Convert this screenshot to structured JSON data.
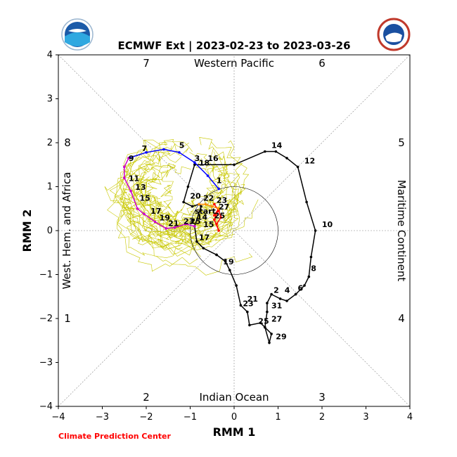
{
  "chart_data": {
    "type": "line",
    "title": "ECMWF Ext | 2023-02-23 to 2023-03-26",
    "xlabel": "RMM 1",
    "ylabel": "RMM 2",
    "xlim": [
      -4,
      4
    ],
    "ylim": [
      -4,
      4
    ],
    "xticks": [
      "−4",
      "−3",
      "−2",
      "−1",
      "0",
      "1",
      "2",
      "3",
      "4"
    ],
    "yticks": [
      "−4",
      "−3",
      "−2",
      "−1",
      "0",
      "1",
      "2",
      "3",
      "4"
    ],
    "regions": {
      "top": "Western Pacific",
      "bottom": "Indian Ocean",
      "left": "West. Hem. and Africa",
      "right": "Maritime Continent"
    },
    "phases": [
      "1",
      "2",
      "3",
      "4",
      "5",
      "6",
      "7",
      "8"
    ],
    "credit": "Climate Prediction Center",
    "unit_circle_radius": 1,
    "colors": {
      "observed": "#000000",
      "forecast_week1": "#ff0000",
      "forecast_week2": "#ff8c00",
      "forecast_week3": "#0000ff",
      "forecast_week4": "#cc00cc",
      "ensemble": "#c8c800"
    },
    "start_label": "start",
    "series": [
      {
        "values": [
          [
            -0.4,
            -0.55
          ],
          [
            -0.2,
            -0.7
          ],
          [
            -0.1,
            -0.9
          ],
          [
            0.05,
            -1.25
          ],
          [
            0.15,
            -1.7
          ],
          [
            0.3,
            -1.85
          ],
          [
            0.35,
            -2.15
          ],
          [
            0.6,
            -2.1
          ],
          [
            0.7,
            -2.2
          ],
          [
            0.85,
            -2.35
          ],
          [
            0.8,
            -2.55
          ],
          [
            0.7,
            -2.2
          ],
          [
            0.75,
            -1.85
          ],
          [
            0.75,
            -1.65
          ],
          [
            0.85,
            -1.45
          ],
          [
            1.05,
            -1.55
          ],
          [
            1.2,
            -1.6
          ],
          [
            1.4,
            -1.45
          ],
          [
            1.6,
            -1.25
          ],
          [
            1.7,
            -1.05
          ],
          [
            1.75,
            -0.6
          ],
          [
            1.85,
            0.0
          ],
          [
            1.65,
            0.65
          ],
          [
            1.45,
            1.45
          ],
          [
            1.2,
            1.65
          ],
          [
            0.95,
            1.8
          ],
          [
            0.7,
            1.8
          ],
          [
            0.0,
            1.5
          ],
          [
            -0.9,
            1.5
          ],
          [
            -1.05,
            1.0
          ],
          [
            -1.15,
            0.65
          ],
          [
            -0.95,
            0.55
          ],
          [
            -0.8,
            0.6
          ],
          [
            -0.75,
            0.55
          ],
          [
            -0.9,
            0.1
          ],
          [
            -0.85,
            -0.25
          ],
          [
            -0.7,
            -0.4
          ],
          [
            -0.4,
            -0.55
          ]
        ],
        "day_labels": [
          {
            "t": "19",
            "x": -0.3,
            "y": -0.8
          },
          {
            "t": "21",
            "x": 0.25,
            "y": -1.65
          },
          {
            "t": "23",
            "x": 0.15,
            "y": -1.75
          },
          {
            "t": "25",
            "x": 0.5,
            "y": -2.15
          },
          {
            "t": "27",
            "x": 0.8,
            "y": -2.1
          },
          {
            "t": "29",
            "x": 0.9,
            "y": -2.5
          },
          {
            "t": "31",
            "x": 0.8,
            "y": -1.8
          },
          {
            "t": "2",
            "x": 0.85,
            "y": -1.45
          },
          {
            "t": "4",
            "x": 1.1,
            "y": -1.45
          },
          {
            "t": "6",
            "x": 1.4,
            "y": -1.4
          },
          {
            "t": "8",
            "x": 1.7,
            "y": -0.95
          },
          {
            "t": "10",
            "x": 1.95,
            "y": 0.05
          },
          {
            "t": "12",
            "x": 1.55,
            "y": 1.5
          },
          {
            "t": "14",
            "x": 0.8,
            "y": 1.85
          },
          {
            "t": "16",
            "x": -0.65,
            "y": 1.55
          },
          {
            "t": "18",
            "x": -0.85,
            "y": 1.45
          },
          {
            "t": "20",
            "x": -1.05,
            "y": 0.7
          },
          {
            "t": "22",
            "x": -0.75,
            "y": 0.65
          },
          {
            "t": "14",
            "x": -0.9,
            "y": 0.22
          },
          {
            "t": "15",
            "x": -0.75,
            "y": 0.05
          },
          {
            "t": "17",
            "x": -0.85,
            "y": -0.25
          }
        ]
      },
      {
        "values": [
          [
            -0.45,
            0.6
          ],
          [
            -0.35,
            0.45
          ],
          [
            -0.3,
            0.3
          ],
          [
            -0.4,
            0.15
          ],
          [
            -0.35,
            0.0
          ],
          [
            -0.45,
            0.25
          ],
          [
            -0.35,
            0.5
          ],
          [
            -0.45,
            0.35
          ]
        ],
        "day_labels": [
          {
            "t": "23",
            "x": -0.45,
            "y": 0.6
          },
          {
            "t": "25",
            "x": -0.5,
            "y": 0.25
          },
          {
            "t": "27",
            "x": -0.4,
            "y": 0.45
          }
        ]
      },
      {
        "values": [
          [
            -0.8,
            0.6
          ],
          [
            -0.65,
            0.6
          ],
          [
            -0.5,
            0.55
          ],
          [
            -0.35,
            0.5
          ]
        ],
        "day_labels": []
      },
      {
        "values": [
          [
            -0.35,
            0.95
          ],
          [
            -0.6,
            1.25
          ],
          [
            -0.9,
            1.55
          ],
          [
            -1.25,
            1.78
          ],
          [
            -1.6,
            1.85
          ],
          [
            -2.0,
            1.78
          ],
          [
            -2.4,
            1.65
          ]
        ],
        "day_labels": [
          {
            "t": "1",
            "x": -0.45,
            "y": 1.05
          },
          {
            "t": "3",
            "x": -0.95,
            "y": 1.55
          },
          {
            "t": "5",
            "x": -1.3,
            "y": 1.85
          },
          {
            "t": "7",
            "x": -2.15,
            "y": 1.78
          }
        ]
      },
      {
        "values": [
          [
            -2.4,
            1.65
          ],
          [
            -2.5,
            1.45
          ],
          [
            -2.5,
            1.2
          ],
          [
            -2.35,
            0.9
          ],
          [
            -2.2,
            0.5
          ],
          [
            -2.05,
            0.38
          ],
          [
            -1.8,
            0.2
          ],
          [
            -1.55,
            0.05
          ],
          [
            -1.35,
            0.07
          ],
          [
            -1.1,
            0.15
          ],
          [
            -0.9,
            0.1
          ]
        ],
        "day_labels": [
          {
            "t": "9",
            "x": -2.45,
            "y": 1.55
          },
          {
            "t": "11",
            "x": -2.45,
            "y": 1.1
          },
          {
            "t": "13",
            "x": -2.3,
            "y": 0.9
          },
          {
            "t": "15",
            "x": -2.2,
            "y": 0.65
          },
          {
            "t": "17",
            "x": -1.95,
            "y": 0.35
          },
          {
            "t": "19",
            "x": -1.75,
            "y": 0.2
          },
          {
            "t": "21",
            "x": -1.55,
            "y": 0.07
          },
          {
            "t": "23",
            "x": -1.2,
            "y": 0.12
          },
          {
            "t": "25",
            "x": -1.05,
            "y": 0.12
          }
        ]
      }
    ]
  }
}
